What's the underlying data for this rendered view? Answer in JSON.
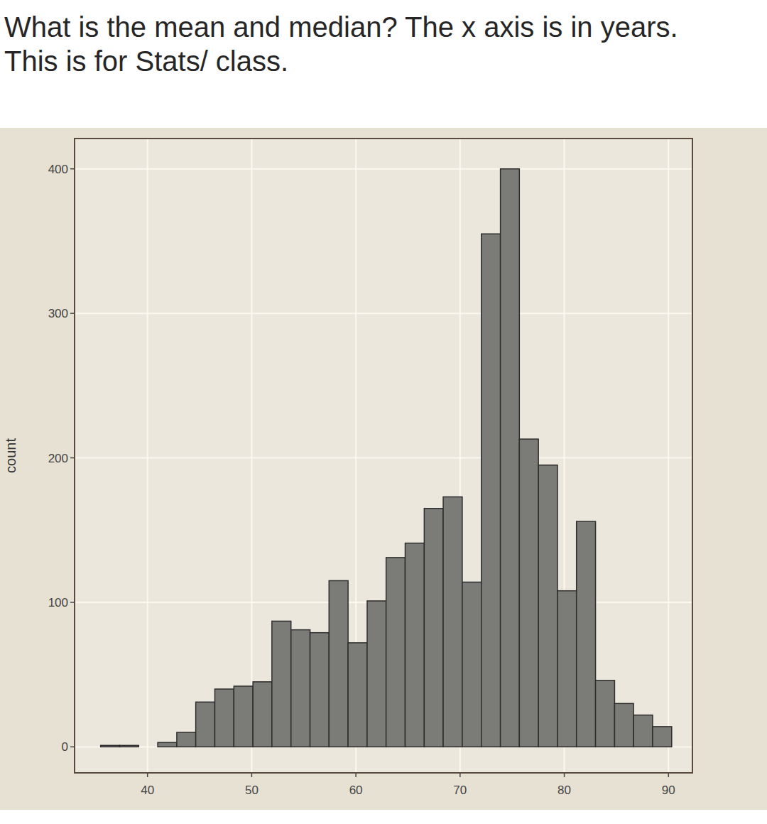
{
  "chart_data": {
    "type": "histogram",
    "title": "What is the mean and median? The x axis is in years. This is for Stats/ class.",
    "y_label": "count",
    "bins": [
      35.5,
      37.33,
      39.15,
      40.98,
      42.81,
      44.63,
      46.46,
      48.29,
      50.12,
      51.94,
      53.77,
      55.6,
      57.42,
      59.25,
      61.08,
      62.9,
      64.73,
      66.56,
      68.38,
      70.21,
      72.04,
      73.87,
      75.69,
      77.52,
      79.35,
      81.17,
      83.0,
      84.83,
      86.65,
      88.48,
      90.31
    ],
    "values": [
      1,
      1,
      0,
      3,
      10,
      31,
      40,
      42,
      45,
      87,
      81,
      79,
      115,
      72,
      101,
      131,
      141,
      165,
      173,
      114,
      355,
      400,
      213,
      195,
      108,
      156,
      46,
      30,
      22,
      14
    ],
    "color": "#7b7b78",
    "xlim": [
      33,
      92.3
    ],
    "ylim": [
      -18,
      421
    ],
    "xticks": [
      40,
      50,
      60,
      70,
      80,
      90
    ],
    "yticks": [
      0,
      100,
      200,
      300,
      400
    ],
    "grid": true
  }
}
